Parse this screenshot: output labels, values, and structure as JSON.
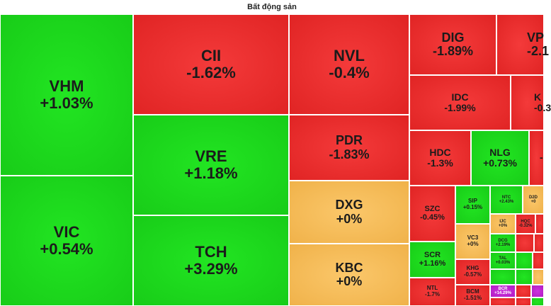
{
  "title": "Bất động sản",
  "tiles": {
    "vhm": {
      "ticker": "VHM",
      "change": "+1.03%"
    },
    "vic": {
      "ticker": "VIC",
      "change": "+0.54%"
    },
    "cii": {
      "ticker": "CII",
      "change": "-1.62%"
    },
    "vre": {
      "ticker": "VRE",
      "change": "+1.18%"
    },
    "tch": {
      "ticker": "TCH",
      "change": "+3.29%"
    },
    "nvl": {
      "ticker": "NVL",
      "change": "-0.4%"
    },
    "pdr": {
      "ticker": "PDR",
      "change": "-1.83%"
    },
    "dxg": {
      "ticker": "DXG",
      "change": "+0%"
    },
    "kbc": {
      "ticker": "KBC",
      "change": "+0%"
    },
    "dig": {
      "ticker": "DIG",
      "change": "-1.89%"
    },
    "vpi": {
      "ticker": "VP",
      "change": "-2.1"
    },
    "idc": {
      "ticker": "IDC",
      "change": "-1.99%"
    },
    "kh": {
      "ticker": "K",
      "change": "-0.3"
    },
    "hdc": {
      "ticker": "HDC",
      "change": "-1.3%"
    },
    "nlg": {
      "ticker": "NLG",
      "change": "+0.73%"
    },
    "edge1": {
      "ticker": "",
      "change": "-"
    },
    "szc": {
      "ticker": "SZC",
      "change": "-0.45%"
    },
    "sip": {
      "ticker": "SIP",
      "change": "+0.15%"
    },
    "vc3": {
      "ticker": "VC3",
      "change": "+0%"
    },
    "ntc": {
      "ticker": "NTC",
      "change": "+2.43%"
    },
    "d2d": {
      "ticker": "D2D",
      "change": "+0"
    },
    "ijc": {
      "ticker": "IJC",
      "change": "+0%"
    },
    "hqc": {
      "ticker": "HQC",
      "change": "-0.32%"
    },
    "dcg": {
      "ticker": "DCG",
      "change": "+2.19%"
    },
    "tal": {
      "ticker": "TAL",
      "change": "+0.03%"
    },
    "scr": {
      "ticker": "SCR",
      "change": "+1.16%"
    },
    "khg": {
      "ticker": "KHG",
      "change": "-0.57%"
    },
    "bcr": {
      "ticker": "BCR",
      "change": "+14.29%"
    },
    "ntl": {
      "ticker": "NTL",
      "change": "-1.7%"
    },
    "bcm": {
      "ticker": "BCM",
      "change": "-1.51%"
    }
  },
  "colors": {
    "up": "#1ed41e",
    "down": "#e92c2c",
    "flat": "#f6bb58",
    "ceiling": "#c026d3"
  }
}
